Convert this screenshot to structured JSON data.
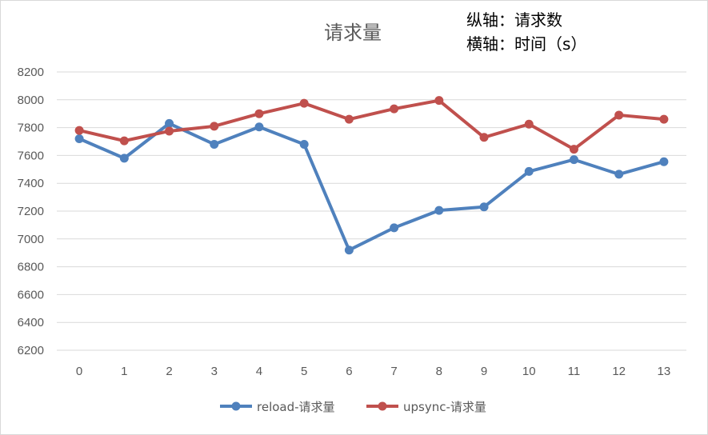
{
  "chart_data": {
    "type": "line",
    "title": "请求量",
    "annotations": [
      "纵轴：请求数",
      "横轴：时间（s）"
    ],
    "x": [
      "0",
      "1",
      "2",
      "3",
      "4",
      "5",
      "6",
      "7",
      "8",
      "9",
      "10",
      "11",
      "12",
      "13"
    ],
    "ylim": [
      6200,
      8200
    ],
    "yticks": [
      6200,
      6400,
      6600,
      6800,
      7000,
      7200,
      7400,
      7600,
      7800,
      8000,
      8200
    ],
    "grid": true,
    "legend_position": "bottom",
    "series": [
      {
        "name": "reload-请求量",
        "color": "#4f81bd",
        "values": [
          7720,
          7580,
          7830,
          7680,
          7805,
          7680,
          6920,
          7080,
          7205,
          7230,
          7485,
          7570,
          7465,
          7555
        ]
      },
      {
        "name": "upsync-请求量",
        "color": "#c0504d",
        "values": [
          7780,
          7705,
          7775,
          7810,
          7900,
          7975,
          7860,
          7935,
          7995,
          7730,
          7825,
          7645,
          7890,
          7860
        ]
      }
    ]
  }
}
